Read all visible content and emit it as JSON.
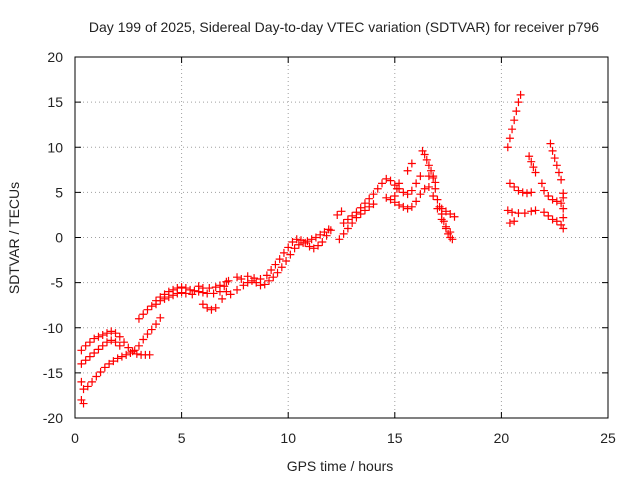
{
  "chart_data": {
    "type": "scatter",
    "title": "Day 199 of 2025, Sidereal Day-to-day VTEC variation (SDTVAR) for receiver p796",
    "xlabel": "GPS time / hours",
    "ylabel": "SDTVAR / TECUs",
    "xlim": [
      0,
      25
    ],
    "ylim": [
      -20,
      20
    ],
    "x_ticks": [
      "0",
      "5",
      "10",
      "15",
      "20",
      "25"
    ],
    "y_ticks": [
      "-20",
      "-15",
      "-10",
      "-5",
      "0",
      "5",
      "10",
      "15",
      "20"
    ],
    "grid": true,
    "marker": "plus",
    "color": "#ff0000",
    "series": [
      {
        "points": [
          [
            0.3,
            -12.5
          ],
          [
            0.5,
            -12.0
          ],
          [
            0.7,
            -11.6
          ],
          [
            0.9,
            -11.2
          ],
          [
            1.1,
            -11.0
          ],
          [
            1.3,
            -10.8
          ],
          [
            1.5,
            -10.6
          ],
          [
            1.7,
            -10.4
          ],
          [
            1.9,
            -10.6
          ],
          [
            2.1,
            -11.0
          ],
          [
            2.3,
            -11.6
          ],
          [
            2.5,
            -12.2
          ],
          [
            2.7,
            -12.6
          ],
          [
            2.9,
            -12.9
          ],
          [
            3.1,
            -13.0
          ],
          [
            3.3,
            -13.0
          ],
          [
            3.5,
            -13.0
          ],
          [
            0.3,
            -14.0
          ],
          [
            0.5,
            -13.6
          ],
          [
            0.7,
            -13.2
          ],
          [
            0.9,
            -12.8
          ],
          [
            1.1,
            -12.4
          ],
          [
            1.3,
            -12.0
          ],
          [
            1.5,
            -11.6
          ],
          [
            1.7,
            -11.4
          ],
          [
            1.9,
            -11.6
          ],
          [
            2.1,
            -12.0
          ],
          [
            0.3,
            -16.0
          ],
          [
            0.4,
            -16.8
          ],
          [
            0.6,
            -16.5
          ],
          [
            0.8,
            -16.0
          ],
          [
            1.0,
            -15.4
          ],
          [
            1.2,
            -14.9
          ],
          [
            1.4,
            -14.4
          ],
          [
            1.6,
            -14.0
          ],
          [
            1.8,
            -13.7
          ],
          [
            2.0,
            -13.4
          ],
          [
            2.2,
            -13.2
          ],
          [
            2.4,
            -13.0
          ],
          [
            2.6,
            -12.8
          ],
          [
            2.8,
            -12.5
          ],
          [
            3.0,
            -12.0
          ],
          [
            3.2,
            -11.3
          ],
          [
            3.4,
            -10.7
          ],
          [
            3.6,
            -10.2
          ],
          [
            3.8,
            -9.6
          ],
          [
            4.0,
            -8.9
          ],
          [
            0.3,
            -18.0
          ],
          [
            0.4,
            -18.4
          ],
          [
            3.0,
            -9.0
          ],
          [
            3.2,
            -8.5
          ],
          [
            3.4,
            -8.0
          ],
          [
            3.6,
            -7.6
          ],
          [
            3.8,
            -7.0
          ],
          [
            4.0,
            -6.6
          ],
          [
            4.2,
            -6.3
          ],
          [
            4.4,
            -6.0
          ],
          [
            4.6,
            -5.8
          ],
          [
            4.8,
            -5.6
          ],
          [
            5.0,
            -5.5
          ],
          [
            5.2,
            -5.6
          ],
          [
            5.4,
            -5.8
          ],
          [
            5.6,
            -5.9
          ],
          [
            5.8,
            -6.0
          ],
          [
            6.0,
            -6.1
          ],
          [
            6.2,
            -6.2
          ],
          [
            6.5,
            -6.2
          ],
          [
            6.8,
            -6.0
          ],
          [
            3.8,
            -7.4
          ],
          [
            4.0,
            -7.0
          ],
          [
            4.2,
            -6.8
          ],
          [
            4.4,
            -6.6
          ],
          [
            4.6,
            -6.4
          ],
          [
            4.8,
            -6.2
          ],
          [
            5.0,
            -6.1
          ],
          [
            5.2,
            -6.2
          ],
          [
            5.5,
            -6.3
          ],
          [
            6.0,
            -7.4
          ],
          [
            6.2,
            -7.8
          ],
          [
            6.4,
            -8.0
          ],
          [
            6.6,
            -7.8
          ],
          [
            5.8,
            -5.4
          ],
          [
            6.0,
            -5.6
          ],
          [
            6.3,
            -5.6
          ],
          [
            6.6,
            -5.5
          ],
          [
            6.8,
            -5.3
          ],
          [
            7.0,
            -5.4
          ],
          [
            7.2,
            -4.8
          ],
          [
            7.1,
            -6.0
          ],
          [
            7.3,
            -6.3
          ],
          [
            7.6,
            -5.8
          ],
          [
            7.9,
            -5.3
          ],
          [
            8.1,
            -5.0
          ],
          [
            8.3,
            -4.8
          ],
          [
            8.5,
            -5.0
          ],
          [
            8.7,
            -5.3
          ],
          [
            8.9,
            -5.2
          ],
          [
            9.1,
            -4.8
          ],
          [
            9.3,
            -4.4
          ],
          [
            9.5,
            -3.9
          ],
          [
            9.7,
            -3.3
          ],
          [
            9.9,
            -2.6
          ],
          [
            10.1,
            -1.9
          ],
          [
            10.3,
            -1.2
          ],
          [
            10.5,
            -0.8
          ],
          [
            10.7,
            -0.6
          ],
          [
            10.9,
            -0.4
          ],
          [
            11.1,
            -0.2
          ],
          [
            11.3,
            0.0
          ],
          [
            11.5,
            0.3
          ],
          [
            11.7,
            0.6
          ],
          [
            11.9,
            0.9
          ],
          [
            7.6,
            -4.4
          ],
          [
            7.8,
            -4.6
          ],
          [
            8.1,
            -4.3
          ],
          [
            8.4,
            -4.5
          ],
          [
            8.7,
            -4.6
          ],
          [
            9.0,
            -4.2
          ],
          [
            9.2,
            -3.6
          ],
          [
            9.4,
            -3.0
          ],
          [
            9.6,
            -2.4
          ],
          [
            9.8,
            -1.7
          ],
          [
            10.0,
            -1.1
          ],
          [
            10.2,
            -0.5
          ],
          [
            10.4,
            -0.2
          ],
          [
            10.6,
            -0.3
          ],
          [
            10.8,
            -0.6
          ],
          [
            11.0,
            -1.0
          ],
          [
            11.2,
            -1.2
          ],
          [
            11.4,
            -0.9
          ],
          [
            11.6,
            -0.5
          ],
          [
            11.8,
            0.2
          ],
          [
            12.0,
            0.8
          ],
          [
            7.1,
            -4.9
          ],
          [
            6.9,
            -6.8
          ],
          [
            12.4,
            -0.2
          ],
          [
            12.6,
            0.4
          ],
          [
            12.8,
            1.0
          ],
          [
            13.0,
            1.6
          ],
          [
            13.2,
            2.2
          ],
          [
            13.4,
            2.6
          ],
          [
            13.6,
            3.0
          ],
          [
            13.8,
            3.4
          ],
          [
            14.0,
            3.7
          ],
          [
            12.6,
            1.6
          ],
          [
            12.8,
            2.0
          ],
          [
            13.0,
            2.4
          ],
          [
            13.2,
            2.8
          ],
          [
            13.4,
            3.3
          ],
          [
            13.6,
            3.8
          ],
          [
            13.8,
            4.3
          ],
          [
            14.0,
            4.8
          ],
          [
            14.2,
            5.4
          ],
          [
            14.4,
            6.0
          ],
          [
            14.6,
            6.5
          ],
          [
            14.8,
            6.3
          ],
          [
            15.0,
            5.8
          ],
          [
            15.2,
            5.4
          ],
          [
            15.4,
            5.0
          ],
          [
            15.6,
            4.8
          ],
          [
            15.8,
            5.2
          ],
          [
            16.0,
            6.0
          ],
          [
            16.2,
            6.8
          ],
          [
            12.3,
            2.5
          ],
          [
            12.5,
            2.9
          ],
          [
            14.6,
            4.4
          ],
          [
            14.8,
            4.2
          ],
          [
            15.0,
            3.9
          ],
          [
            15.2,
            3.6
          ],
          [
            15.4,
            3.4
          ],
          [
            15.6,
            3.2
          ],
          [
            15.8,
            3.4
          ],
          [
            16.0,
            4.0
          ],
          [
            16.2,
            4.8
          ],
          [
            16.4,
            5.4
          ],
          [
            16.6,
            5.6
          ],
          [
            16.8,
            4.6
          ],
          [
            17.0,
            3.2
          ],
          [
            17.2,
            2.0
          ],
          [
            17.4,
            1.2
          ],
          [
            17.6,
            0.6
          ],
          [
            15.0,
            4.6
          ],
          [
            15.1,
            5.4
          ],
          [
            15.2,
            6.0
          ],
          [
            16.3,
            9.6
          ],
          [
            16.4,
            9.2
          ],
          [
            16.5,
            8.6
          ],
          [
            16.6,
            8.0
          ],
          [
            16.7,
            7.4
          ],
          [
            16.8,
            6.8
          ],
          [
            16.9,
            6.1
          ],
          [
            16.6,
            6.8
          ],
          [
            16.8,
            6.6
          ],
          [
            16.9,
            5.4
          ],
          [
            17.0,
            4.2
          ],
          [
            17.1,
            3.4
          ],
          [
            17.2,
            2.6
          ],
          [
            17.3,
            1.8
          ],
          [
            17.4,
            1.0
          ],
          [
            17.5,
            0.4
          ],
          [
            17.6,
            0.0
          ],
          [
            17.7,
            -0.2
          ],
          [
            17.2,
            3.2
          ],
          [
            17.4,
            2.9
          ],
          [
            17.6,
            2.6
          ],
          [
            17.8,
            2.3
          ],
          [
            15.6,
            7.4
          ],
          [
            15.8,
            8.2
          ],
          [
            20.3,
            10.0
          ],
          [
            20.4,
            11.0
          ],
          [
            20.5,
            12.0
          ],
          [
            20.6,
            13.0
          ],
          [
            20.7,
            14.0
          ],
          [
            20.8,
            15.0
          ],
          [
            20.9,
            15.8
          ],
          [
            20.4,
            6.0
          ],
          [
            20.6,
            5.6
          ],
          [
            20.8,
            5.2
          ],
          [
            21.0,
            5.0
          ],
          [
            21.2,
            4.9
          ],
          [
            21.4,
            5.0
          ],
          [
            20.3,
            3.0
          ],
          [
            20.5,
            2.8
          ],
          [
            20.8,
            2.7
          ],
          [
            21.1,
            2.7
          ],
          [
            21.4,
            2.9
          ],
          [
            21.6,
            3.0
          ],
          [
            20.4,
            1.6
          ],
          [
            20.6,
            1.8
          ],
          [
            21.3,
            9.0
          ],
          [
            21.4,
            8.4
          ],
          [
            21.5,
            7.8
          ],
          [
            21.6,
            7.2
          ],
          [
            22.3,
            10.4
          ],
          [
            22.4,
            9.6
          ],
          [
            22.5,
            8.8
          ],
          [
            22.6,
            8.0
          ],
          [
            22.7,
            7.2
          ],
          [
            22.8,
            6.4
          ],
          [
            21.9,
            6.0
          ],
          [
            22.0,
            5.2
          ],
          [
            22.2,
            4.6
          ],
          [
            22.4,
            4.2
          ],
          [
            22.6,
            4.0
          ],
          [
            22.8,
            3.8
          ],
          [
            22.9,
            4.4
          ],
          [
            22.0,
            2.8
          ],
          [
            22.2,
            2.4
          ],
          [
            22.4,
            2.0
          ],
          [
            22.6,
            1.8
          ],
          [
            22.8,
            1.4
          ],
          [
            22.9,
            1.0
          ],
          [
            22.9,
            2.2
          ],
          [
            22.9,
            3.2
          ],
          [
            22.9,
            4.9
          ]
        ]
      }
    ]
  }
}
